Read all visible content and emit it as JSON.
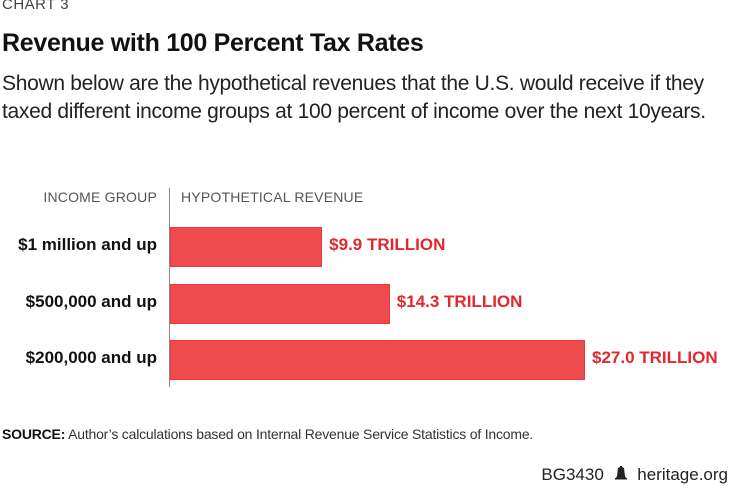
{
  "kicker": "CHART 3",
  "title": "Revenue with 100 Percent Tax Rates",
  "subtitle": "Shown below are the hypothetical revenues that the U.S. would receive if they taxed different income groups at 100 percent of income over the next 10years.",
  "source_label": "SOURCE:",
  "source_text": " Author’s calculations based on Internal Revenue Service Statistics of Income.",
  "footer": {
    "report_id": "BG3430",
    "logo_icon": "liberty-bell-icon",
    "site": "heritage.org"
  },
  "chart_data": {
    "type": "bar",
    "orientation": "horizontal",
    "title": "Revenue with 100 Percent Tax Rates",
    "column_headers": [
      "INCOME GROUP",
      "HYPOTHETICAL REVENUE"
    ],
    "categories": [
      "$1 million and up",
      "$500,000 and up",
      "$200,000 and up"
    ],
    "values": [
      9.9,
      14.3,
      27.0
    ],
    "value_labels": [
      "$9.9 TRILLION",
      "$14.3 TRILLION",
      "$27.0 TRILLION"
    ],
    "units": "trillion USD",
    "xlabel": "",
    "ylabel": "",
    "xlim": [
      0,
      27.0
    ],
    "grid": false,
    "legend": "none",
    "colors": {
      "bar": "#ef4b4f",
      "value_label": "#e0282e"
    }
  }
}
